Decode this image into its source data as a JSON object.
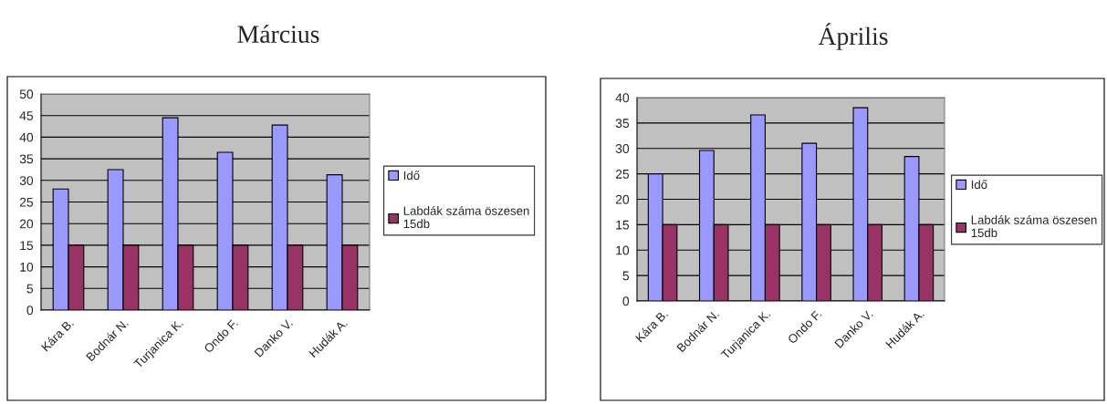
{
  "chart_data": [
    {
      "type": "bar",
      "title": "Március",
      "categories": [
        "Kára B.",
        "Bodnár N.",
        "Turjanica K.",
        "Ondo F.",
        "Danko V.",
        "Hudák A."
      ],
      "series": [
        {
          "name": "Idő",
          "color": "#9999ff",
          "values": [
            28,
            32.5,
            44.5,
            36.5,
            42.8,
            31.3
          ]
        },
        {
          "name": "Labdák száma öszesen\n15db",
          "color": "#993366",
          "values": [
            15,
            15,
            15,
            15,
            15,
            15
          ]
        }
      ],
      "ylim": [
        0,
        50
      ],
      "yticks": [
        0,
        5,
        10,
        15,
        20,
        25,
        30,
        35,
        40,
        45,
        50
      ],
      "grid": "y",
      "legend": "right"
    },
    {
      "type": "bar",
      "title": "Április",
      "categories": [
        "Kára B.",
        "Bodnár N.",
        "Turjanica K.",
        "Ondo F.",
        "Danko V.",
        "Hudák A."
      ],
      "series": [
        {
          "name": "Idő",
          "color": "#9999ff",
          "values": [
            25,
            29.6,
            36.6,
            31,
            38,
            28.4
          ]
        },
        {
          "name": "Labdák száma öszesen\n15db",
          "color": "#993366",
          "values": [
            15,
            15,
            15,
            15,
            15,
            15
          ]
        }
      ],
      "ylim": [
        0,
        40
      ],
      "yticks": [
        0,
        5,
        10,
        15,
        20,
        25,
        30,
        35,
        40
      ],
      "grid": "y",
      "legend": "right"
    }
  ]
}
